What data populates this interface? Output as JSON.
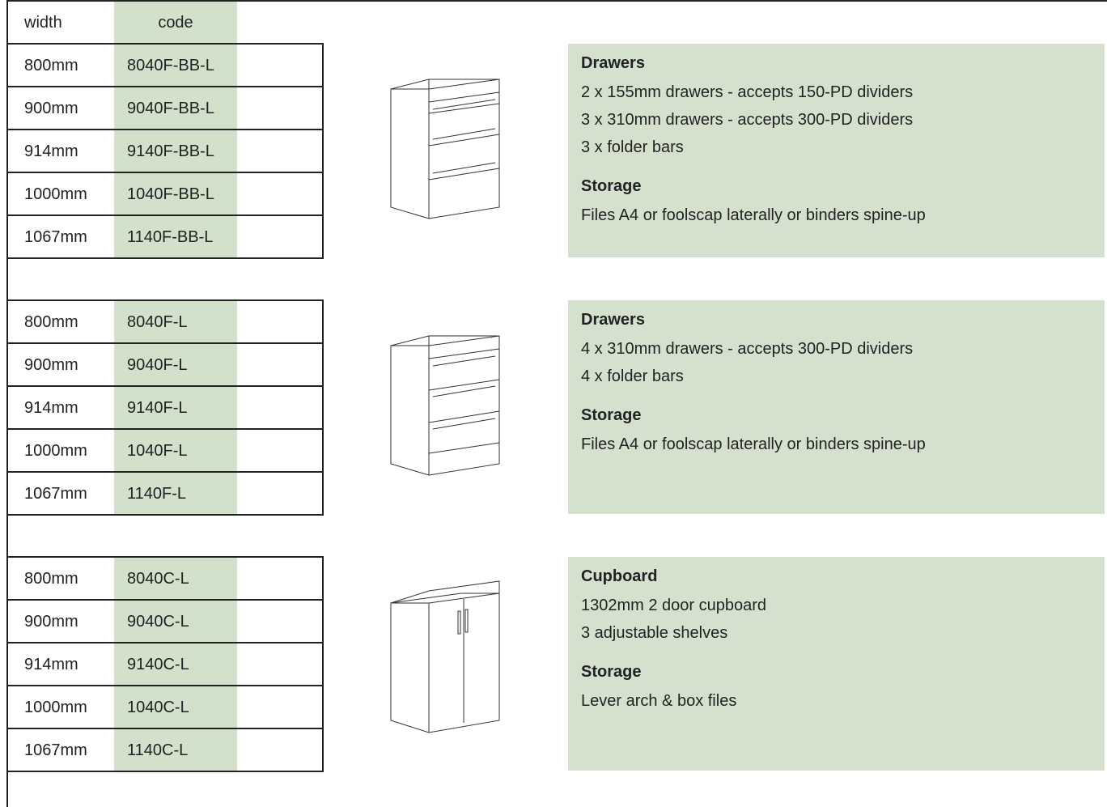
{
  "header": {
    "width": "width",
    "code": "code"
  },
  "groups": [
    {
      "rows": [
        [
          "800mm",
          "8040F-BB-L"
        ],
        [
          "900mm",
          "9040F-BB-L"
        ],
        [
          "914mm",
          "9140F-BB-L"
        ],
        [
          "1000mm",
          "1040F-BB-L"
        ],
        [
          "1067mm",
          "1140F-BB-L"
        ]
      ],
      "sections": [
        {
          "heading": "Drawers",
          "lines": [
            "2 x 155mm drawers - accepts 150-PD dividers",
            "3 x 310mm drawers - accepts 300-PD dividers",
            "3 x folder bars"
          ]
        },
        {
          "heading": "Storage",
          "lines": [
            "Files A4 or foolscap laterally or binders spine-up"
          ]
        }
      ]
    },
    {
      "rows": [
        [
          "800mm",
          "8040F-L"
        ],
        [
          "900mm",
          "9040F-L"
        ],
        [
          "914mm",
          "9140F-L"
        ],
        [
          "1000mm",
          "1040F-L"
        ],
        [
          "1067mm",
          "1140F-L"
        ]
      ],
      "sections": [
        {
          "heading": "Drawers",
          "lines": [
            "4 x 310mm drawers - accepts 300-PD dividers",
            "4 x folder bars"
          ]
        },
        {
          "heading": "Storage",
          "lines": [
            "Files A4 or foolscap laterally or binders spine-up"
          ]
        }
      ]
    },
    {
      "rows": [
        [
          "800mm",
          "8040C-L"
        ],
        [
          "900mm",
          "9040C-L"
        ],
        [
          "914mm",
          "9140C-L"
        ],
        [
          "1000mm",
          "1040C-L"
        ],
        [
          "1067mm",
          "1140C-L"
        ]
      ],
      "sections": [
        {
          "heading": "Cupboard",
          "lines": [
            "1302mm 2 door cupboard",
            "3 adjustable shelves"
          ]
        },
        {
          "heading": "Storage",
          "lines": [
            "Lever arch & box files"
          ]
        }
      ]
    }
  ]
}
